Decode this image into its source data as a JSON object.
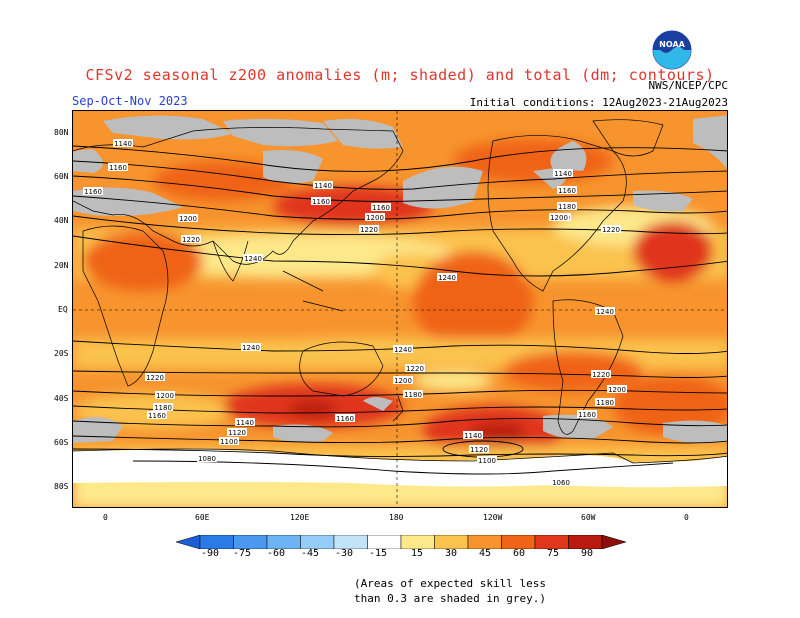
{
  "header": {
    "title": "CFSv2 seasonal z200 anomalies (m; shaded) and total (dm; contours)",
    "season": "Sep-Oct-Nov 2023",
    "initial_conditions": "Initial conditions: 12Aug2023-21Aug2023",
    "agency": "NWS/NCEP/CPC",
    "logo_text": "NOAA"
  },
  "map": {
    "lat_labels": [
      "80N",
      "60N",
      "40N",
      "20N",
      "EQ",
      "20S",
      "40S",
      "60S",
      "80S"
    ],
    "lon_labels": [
      "0",
      "60E",
      "120E",
      "180",
      "120W",
      "60W",
      "0"
    ],
    "contour_labels": [
      "1140",
      "1160",
      "1160",
      "1140",
      "1160",
      "1160",
      "1200",
      "1200",
      "1200",
      "1220",
      "1220",
      "1240",
      "1240",
      "1240",
      "1240",
      "1240",
      "1220",
      "1220",
      "1200",
      "1200",
      "1180",
      "1180",
      "1160",
      "1160",
      "1140",
      "1120",
      "1100",
      "1080",
      "1220",
      "1200",
      "1180",
      "1160",
      "1140",
      "1120",
      "1100",
      "1060",
      "1140",
      "1160",
      "1180",
      "1200",
      "1220"
    ]
  },
  "colorbar": {
    "labels": [
      "-90",
      "-75",
      "-60",
      "-45",
      "-30",
      "-15",
      "15",
      "30",
      "45",
      "60",
      "75",
      "90"
    ],
    "colors": [
      "#1a5fd6",
      "#2a7be6",
      "#4a98f0",
      "#6db4f5",
      "#96cdf8",
      "#c2e4fb",
      "#ffffff",
      "#fde88a",
      "#fbc24e",
      "#f7942e",
      "#f06418",
      "#e0361a",
      "#b81a10",
      "#8c0e0a"
    ]
  },
  "note": {
    "line1": "(Areas of expected skill less",
    "line2": "than 0.3 are shaded in grey.)"
  }
}
